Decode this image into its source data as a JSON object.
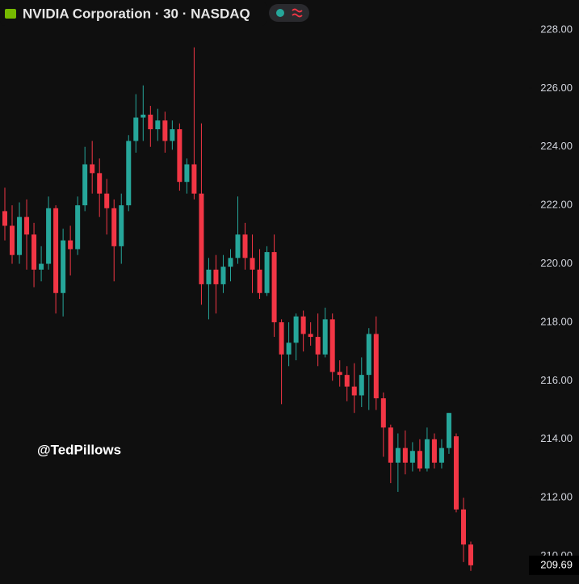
{
  "chart_data": {
    "type": "candlestick",
    "title": "NVIDIA Corporation · 30 · NASDAQ",
    "watermark": "@TedPillows",
    "up_color": "#26a69a",
    "down_color": "#f23645",
    "ylim": [
      209.05,
      229.02
    ],
    "yticks": [
      {
        "value": 210,
        "label": "210.00"
      },
      {
        "value": 212,
        "label": "212.00"
      },
      {
        "value": 214,
        "label": "214.00"
      },
      {
        "value": 216,
        "label": "216.00"
      },
      {
        "value": 218,
        "label": "218.00"
      },
      {
        "value": 220,
        "label": "220.00"
      },
      {
        "value": 222,
        "label": "222.00"
      },
      {
        "value": 224,
        "label": "224.00"
      },
      {
        "value": 226,
        "label": "226.00"
      },
      {
        "value": 228,
        "label": "228.00"
      }
    ],
    "last_price": 209.69,
    "open": [
      221.8,
      221.3,
      220.3,
      221.6,
      221.0,
      219.8,
      220.0,
      221.9,
      219.0,
      220.8,
      220.5,
      222.0,
      223.4,
      223.1,
      222.4,
      221.9,
      220.6,
      222.0,
      224.2,
      225.0,
      225.1,
      224.6,
      224.9,
      224.2,
      224.6,
      222.8,
      223.4,
      222.4,
      219.3,
      219.8,
      219.3,
      219.9,
      220.2,
      221.0,
      220.2,
      219.8,
      219.0,
      220.4,
      218.0,
      216.9,
      217.3,
      218.2,
      217.6,
      217.5,
      216.9,
      218.1,
      216.3,
      216.2,
      215.8,
      215.5,
      216.2,
      217.6,
      215.4,
      214.4,
      213.2,
      213.7,
      213.2,
      213.6,
      213.0,
      214.0,
      213.2,
      213.7,
      214.1,
      211.6,
      210.4
    ],
    "high": [
      222.6,
      222.0,
      222.1,
      222.2,
      221.4,
      220.6,
      222.3,
      222.0,
      221.2,
      221.3,
      222.3,
      224.0,
      224.2,
      223.6,
      222.9,
      222.2,
      222.4,
      224.4,
      225.8,
      226.1,
      225.4,
      225.3,
      225.2,
      224.9,
      224.8,
      223.6,
      227.4,
      224.8,
      220.2,
      220.3,
      220.3,
      220.5,
      222.3,
      221.4,
      221.0,
      220.5,
      220.6,
      221.0,
      218.1,
      218.0,
      218.3,
      218.4,
      218.0,
      218.3,
      218.5,
      218.3,
      216.7,
      216.5,
      216.6,
      216.8,
      217.8,
      218.2,
      215.6,
      214.5,
      214.2,
      214.3,
      213.9,
      214.0,
      214.4,
      214.2,
      214.0,
      214.9,
      214.2,
      212.0,
      210.5
    ],
    "low": [
      220.8,
      220.0,
      220.0,
      219.8,
      219.2,
      219.4,
      219.8,
      218.3,
      218.2,
      219.6,
      220.3,
      221.8,
      222.4,
      221.6,
      221.0,
      219.4,
      220.0,
      221.8,
      223.8,
      224.2,
      224.0,
      224.2,
      223.8,
      223.9,
      222.5,
      222.4,
      222.2,
      218.6,
      218.1,
      218.3,
      219.0,
      219.4,
      220.0,
      219.8,
      219.0,
      218.8,
      218.9,
      217.5,
      215.2,
      216.5,
      216.7,
      217.0,
      217.2,
      216.5,
      216.8,
      216.0,
      215.8,
      215.3,
      214.9,
      215.1,
      215.0,
      215.0,
      213.4,
      212.5,
      212.2,
      212.8,
      212.9,
      212.9,
      212.9,
      213.0,
      213.0,
      213.5,
      211.5,
      209.8,
      209.5
    ],
    "close": [
      221.3,
      220.3,
      221.6,
      221.0,
      219.8,
      220.0,
      221.9,
      219.0,
      220.8,
      220.5,
      222.0,
      223.4,
      223.1,
      222.4,
      221.9,
      220.6,
      222.0,
      224.2,
      225.0,
      225.1,
      224.6,
      224.9,
      224.2,
      224.6,
      222.8,
      223.4,
      222.4,
      219.3,
      219.8,
      219.3,
      219.9,
      220.2,
      221.0,
      220.2,
      219.8,
      219.0,
      220.4,
      218.0,
      216.9,
      217.3,
      218.2,
      217.6,
      217.5,
      216.9,
      218.1,
      216.3,
      216.2,
      215.8,
      215.5,
      216.2,
      217.6,
      215.4,
      214.4,
      213.2,
      213.7,
      213.2,
      213.6,
      213.0,
      214.0,
      213.2,
      213.7,
      214.9,
      211.6,
      210.4,
      209.69
    ]
  }
}
